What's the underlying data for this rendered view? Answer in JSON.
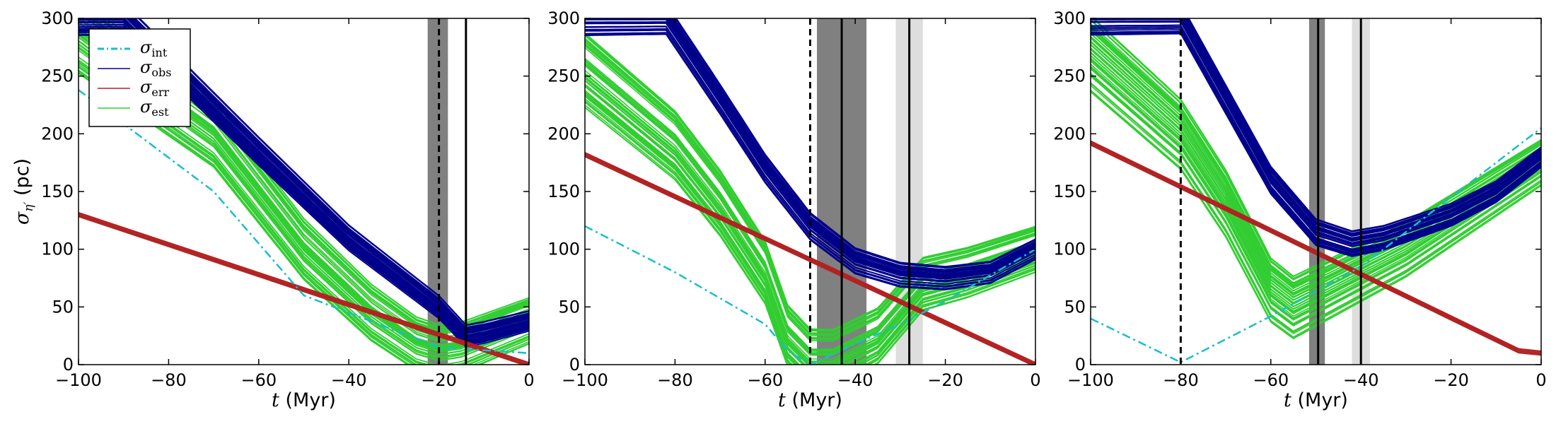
{
  "chart_data": [
    {
      "type": "line",
      "xlabel_var": "t",
      "xlabel_unit": " (Myr)",
      "ylabel_var": "σ",
      "ylabel_sub": "η′",
      "ylabel_unit": " (pc)",
      "xlim": [
        -100,
        0
      ],
      "ylim": [
        0,
        300
      ],
      "x_ticks": [
        "−100",
        "−80",
        "−60",
        "−40",
        "−20",
        "0"
      ],
      "y_ticks": [
        "0",
        "50",
        "100",
        "150",
        "200",
        "250",
        "300"
      ],
      "legend": {
        "placement": "top-left",
        "entries": [
          {
            "sym": "σ",
            "sub": "int",
            "color": "#17becf",
            "dash": "dashdot"
          },
          {
            "sym": "σ",
            "sub": "obs",
            "color": "#00008b",
            "dash": "solid"
          },
          {
            "sym": "σ",
            "sub": "err",
            "color": "#b22222",
            "dash": "solid"
          },
          {
            "sym": "σ",
            "sub": "est",
            "color": "#32cd32",
            "dash": "solid"
          }
        ]
      },
      "series": {
        "int": {
          "color": "#17becf",
          "x": [
            -100,
            -70,
            -50,
            -20,
            0
          ],
          "y": [
            238,
            150,
            60,
            15,
            10
          ]
        },
        "obs": {
          "color": "#00008b",
          "x": [
            -90,
            -60,
            -40,
            -20,
            -14,
            -10,
            0
          ],
          "y": [
            300,
            185,
            110,
            50,
            25,
            28,
            38
          ]
        },
        "err": {
          "color": "#b22222",
          "x": [
            -100,
            0
          ],
          "y": [
            130,
            0
          ]
        },
        "est": {
          "color": "#32cd32",
          "x": [
            -100,
            -70,
            -50,
            -35,
            -25,
            -20,
            -15,
            0
          ],
          "y": [
            285,
            200,
            100,
            45,
            18,
            12,
            15,
            38
          ]
        }
      },
      "bands": [
        {
          "x0": -22.5,
          "x1": -18,
          "shade": "dark"
        }
      ],
      "vlines": [
        {
          "x": -20,
          "style": "dashed"
        },
        {
          "x": -14,
          "style": "solid"
        }
      ]
    },
    {
      "type": "line",
      "xlabel_var": "t",
      "xlabel_unit": " (Myr)",
      "xlim": [
        -100,
        0
      ],
      "ylim": [
        0,
        300
      ],
      "x_ticks": [
        "−100",
        "−80",
        "−60",
        "−40",
        "−20",
        "0"
      ],
      "y_ticks": [
        "0",
        "50",
        "100",
        "150",
        "200",
        "250",
        "300"
      ],
      "series": {
        "int": {
          "color": "#17becf",
          "x": [
            -100,
            -80,
            -60,
            -55,
            -50,
            -40,
            -30,
            -20,
            0
          ],
          "y": [
            120,
            80,
            35,
            12,
            0,
            18,
            35,
            55,
            100
          ]
        },
        "obs": {
          "color": "#00008b",
          "x": [
            -82,
            -70,
            -60,
            -50,
            -40,
            -30,
            -20,
            -10,
            0
          ],
          "y": [
            300,
            230,
            170,
            120,
            90,
            78,
            75,
            80,
            100
          ]
        },
        "err": {
          "color": "#b22222",
          "x": [
            -100,
            0
          ],
          "y": [
            182,
            0
          ]
        },
        "est": {
          "color": "#32cd32",
          "x": [
            -100,
            -80,
            -70,
            -60,
            -55,
            -50,
            -45,
            -35,
            -25,
            -15,
            0
          ],
          "y": [
            255,
            190,
            140,
            80,
            25,
            5,
            5,
            25,
            70,
            80,
            100
          ]
        }
      },
      "bands": [
        {
          "x0": -48.5,
          "x1": -37.5,
          "shade": "dark"
        },
        {
          "x0": -31,
          "x1": -25,
          "shade": "light"
        }
      ],
      "vlines": [
        {
          "x": -50,
          "style": "dashed"
        },
        {
          "x": -43,
          "style": "solid"
        },
        {
          "x": -28,
          "style": "solid"
        }
      ]
    },
    {
      "type": "line",
      "xlabel_var": "t",
      "xlabel_unit": " (Myr)",
      "xlim": [
        -100,
        0
      ],
      "ylim": [
        0,
        300
      ],
      "x_ticks": [
        "−100",
        "−80",
        "−60",
        "−40",
        "−20",
        "0"
      ],
      "y_ticks": [
        "0",
        "50",
        "100",
        "150",
        "200",
        "250",
        "300"
      ],
      "series": {
        "int": {
          "color": "#17becf",
          "x": [
            -100,
            -80,
            -60,
            -40,
            -20,
            0
          ],
          "y": [
            40,
            2,
            42,
            85,
            145,
            205
          ]
        },
        "obs": {
          "color": "#00008b",
          "x": [
            -80,
            -70,
            -60,
            -50,
            -42,
            -35,
            -20,
            -10,
            0
          ],
          "y": [
            300,
            230,
            160,
            115,
            105,
            110,
            130,
            150,
            180
          ]
        },
        "err": {
          "color": "#b22222",
          "x": [
            -100,
            -5,
            0
          ],
          "y": [
            192,
            12,
            10
          ]
        },
        "est": {
          "color": "#32cd32",
          "x": [
            -100,
            -80,
            -70,
            -60,
            -55,
            -50,
            -40,
            -30,
            -20,
            -10,
            0
          ],
          "y": [
            270,
            200,
            140,
            65,
            50,
            60,
            80,
            100,
            125,
            150,
            175
          ]
        }
      },
      "bands": [
        {
          "x0": -51.5,
          "x1": -48,
          "shade": "dark"
        },
        {
          "x0": -42,
          "x1": -38,
          "shade": "light"
        }
      ],
      "vlines": [
        {
          "x": -80,
          "style": "dashed"
        },
        {
          "x": -49.5,
          "style": "solid"
        },
        {
          "x": -40,
          "style": "solid"
        }
      ]
    }
  ]
}
